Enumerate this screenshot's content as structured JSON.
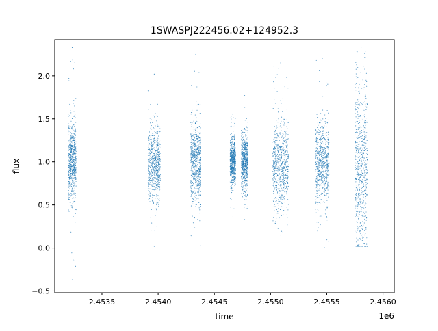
{
  "colors": {
    "marker": "#1f77b4",
    "axis": "#000000",
    "background": "#ffffff"
  },
  "chart_data": {
    "type": "scatter",
    "title": "1SWASPJ222456.02+124952.3",
    "xlabel": "time",
    "ylabel": "flux",
    "x_offset_label": "1e6",
    "xlim": [
      2.45308,
      2.4561
    ],
    "ylim": [
      -0.52,
      2.42
    ],
    "x_ticks": [
      2.4535,
      2.454,
      2.4545,
      2.455,
      2.4555,
      2.456
    ],
    "x_tick_labels": [
      "2.4535",
      "2.4540",
      "2.4545",
      "2.4550",
      "2.4555",
      "2.4560"
    ],
    "y_ticks": [
      -0.5,
      0.0,
      0.5,
      1.0,
      1.5,
      2.0
    ],
    "y_tick_labels": [
      "−0.5",
      "0.0",
      "0.5",
      "1.0",
      "1.5",
      "2.0"
    ],
    "grid": false,
    "legend": "none",
    "series": [
      {
        "observing_seasons": [
          {
            "x_start": 2.4532,
            "x_end": 2.45327,
            "flux_median": 1.0,
            "flux_p95_low": 0.6,
            "flux_p95_high": 1.5,
            "flux_min": -0.37,
            "flux_max": 2.33
          },
          {
            "x_start": 2.45391,
            "x_end": 2.45402,
            "flux_median": 0.97,
            "flux_p95_low": 0.55,
            "flux_p95_high": 1.45,
            "flux_min": 0.02,
            "flux_max": 2.02
          },
          {
            "x_start": 2.45429,
            "x_end": 2.45438,
            "flux_median": 0.98,
            "flux_p95_low": 0.55,
            "flux_p95_high": 1.5,
            "flux_min": 0.0,
            "flux_max": 2.25
          },
          {
            "x_start": 2.45464,
            "x_end": 2.45469,
            "flux_median": 1.0,
            "flux_p95_low": 0.75,
            "flux_p95_high": 1.3,
            "flux_min": 0.36,
            "flux_max": 1.55
          },
          {
            "x_start": 2.45474,
            "x_end": 2.4548,
            "flux_median": 1.0,
            "flux_p95_low": 0.72,
            "flux_p95_high": 1.35,
            "flux_min": 0.33,
            "flux_max": 1.77
          },
          {
            "x_start": 2.45502,
            "x_end": 2.45516,
            "flux_median": 0.95,
            "flux_p95_low": 0.45,
            "flux_p95_high": 1.5,
            "flux_min": 0.15,
            "flux_max": 2.15
          },
          {
            "x_start": 2.4554,
            "x_end": 2.45552,
            "flux_median": 1.0,
            "flux_p95_low": 0.55,
            "flux_p95_high": 1.5,
            "flux_min": 0.0,
            "flux_max": 2.2
          },
          {
            "x_start": 2.45575,
            "x_end": 2.45586,
            "flux_median": 0.92,
            "flux_p95_low": 0.2,
            "flux_p95_high": 2.2,
            "flux_min": 0.02,
            "flux_max": 2.33
          }
        ]
      }
    ]
  }
}
